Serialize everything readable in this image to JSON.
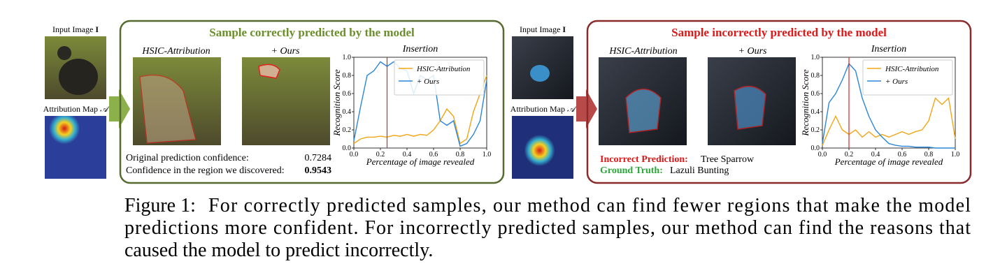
{
  "inputs": [
    {
      "image_label": "Input Image",
      "image_symbol": "I",
      "map_label": "Attribution Map",
      "map_symbol": "𝒜"
    },
    {
      "image_label": "Input Image",
      "image_symbol": "I",
      "map_label": "Attribution Map",
      "map_symbol": "𝒜"
    }
  ],
  "panels": [
    {
      "title": "Sample correctly predicted by the model",
      "method_labels": [
        "HSIC-Attribution",
        "+ Ours"
      ],
      "lines": [
        {
          "label": "Original prediction confidence:",
          "value": "0.7284"
        },
        {
          "label": "Confidence in the region we discovered:",
          "value": "0.9543"
        }
      ]
    },
    {
      "title": "Sample incorrectly predicted by the model",
      "method_labels": [
        "HSIC-Attribution",
        "+ Ours"
      ],
      "lines": [
        {
          "label": "Incorrect Prediction:",
          "value": "Tree Sparrow"
        },
        {
          "label": "Ground Truth:",
          "value": "Lazuli Bunting"
        }
      ]
    }
  ],
  "chart_data": [
    {
      "type": "line",
      "title": "Insertion",
      "x_label": "Percentage of image revealed",
      "y_label": "Recognition Score",
      "x": [
        0,
        0.05,
        0.1,
        0.15,
        0.2,
        0.25,
        0.3,
        0.35,
        0.4,
        0.45,
        0.5,
        0.55,
        0.6,
        0.65,
        0.7,
        0.75,
        0.8,
        0.85,
        0.9,
        0.95,
        1.0
      ],
      "series": [
        {
          "name": "HSIC-Attribution",
          "color": "#f2a516",
          "values": [
            0.05,
            0.1,
            0.12,
            0.12,
            0.13,
            0.12,
            0.14,
            0.13,
            0.15,
            0.13,
            0.15,
            0.14,
            0.2,
            0.3,
            0.43,
            0.35,
            0.05,
            0.1,
            0.4,
            0.6,
            0.8
          ]
        },
        {
          "name": "+ Ours",
          "color": "#2b86d9",
          "values": [
            0.08,
            0.45,
            0.8,
            0.85,
            0.95,
            0.9,
            0.95,
            0.88,
            0.85,
            0.6,
            0.8,
            0.75,
            0.8,
            0.3,
            0.25,
            0.3,
            0.02,
            0.05,
            0.15,
            0.3,
            0.75
          ]
        }
      ],
      "marker_x": 0.25,
      "marker_color": "#d62728",
      "xlim": [
        0,
        1
      ],
      "ylim": [
        0,
        1
      ],
      "xticks": [
        {
          "value": 0,
          "label": "0.0"
        },
        0.2,
        0.4,
        0.6,
        0.8,
        {
          "value": 1,
          "label": "1.0"
        }
      ],
      "yticks": [
        {
          "value": 0,
          "label": "0.0"
        },
        0.2,
        0.4,
        0.6,
        0.8,
        {
          "value": 1,
          "label": "1.0"
        }
      ],
      "legend": "upper right"
    },
    {
      "type": "line",
      "title": "Insertion",
      "x_label": "Percentage of image revealed",
      "y_label": "Recognition Score",
      "x": [
        0,
        0.05,
        0.1,
        0.15,
        0.2,
        0.25,
        0.3,
        0.35,
        0.4,
        0.45,
        0.5,
        0.55,
        0.6,
        0.65,
        0.7,
        0.75,
        0.8,
        0.85,
        0.9,
        0.95,
        1.0
      ],
      "series": [
        {
          "name": "HSIC-Attribution",
          "color": "#f2a516",
          "values": [
            0.03,
            0.2,
            0.35,
            0.2,
            0.15,
            0.2,
            0.12,
            0.18,
            0.12,
            0.15,
            0.12,
            0.15,
            0.18,
            0.15,
            0.18,
            0.2,
            0.3,
            0.55,
            0.48,
            0.55,
            0.1
          ]
        },
        {
          "name": "+ Ours",
          "color": "#2b86d9",
          "values": [
            0.05,
            0.5,
            0.6,
            0.75,
            0.93,
            0.85,
            0.55,
            0.35,
            0.2,
            0.12,
            0.05,
            0.03,
            0.02,
            0.02,
            0.01,
            0.01,
            0.01,
            0.0,
            0.0,
            0.0,
            0.0
          ]
        }
      ],
      "marker_x": 0.2,
      "marker_color": "#d62728",
      "xlim": [
        0,
        1
      ],
      "ylim": [
        0,
        1
      ],
      "xticks": [
        {
          "value": 0,
          "label": "0.0"
        },
        0.2,
        0.4,
        0.6,
        0.8,
        {
          "value": 1,
          "label": "1.0"
        }
      ],
      "yticks": [
        {
          "value": 0,
          "label": "0.0"
        },
        0.2,
        0.4,
        0.6,
        0.8,
        {
          "value": 1,
          "label": "1.0"
        }
      ],
      "legend": "upper right"
    }
  ],
  "caption": {
    "label": "Figure 1:",
    "lines": [
      "For correctly predicted samples, our method can find fewer regions that make the model",
      "predictions more confident. For incorrectly predicted samples, our method can find the reasons that",
      "caused the model to predict incorrectly."
    ]
  }
}
